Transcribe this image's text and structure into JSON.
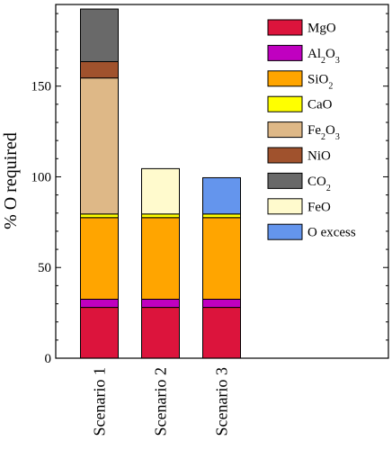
{
  "chart_data": {
    "type": "bar",
    "stacked": true,
    "ylabel": "% O required",
    "xlabel": "",
    "ylim": [
      0,
      195
    ],
    "yticks": [
      0,
      50,
      100,
      150
    ],
    "categories": [
      "Scenario 1",
      "Scenario 2",
      "Scenario 3"
    ],
    "legend_position": "top-right",
    "series": [
      {
        "name": "MgO",
        "label_base": "MgO",
        "label_sub": "",
        "label_tail": "",
        "color": "#dc143c",
        "values": [
          28,
          28,
          28
        ]
      },
      {
        "name": "Al2O3",
        "label_base": "Al",
        "label_sub": "2",
        "label_tail": "O",
        "label_sub2": "3",
        "color": "#c000c0",
        "values": [
          4.5,
          4.5,
          4.5
        ]
      },
      {
        "name": "SiO2",
        "label_base": "SiO",
        "label_sub": "2",
        "label_tail": "",
        "color": "#ffa500",
        "values": [
          45,
          45,
          45
        ]
      },
      {
        "name": "CaO",
        "label_base": "CaO",
        "label_sub": "",
        "label_tail": "",
        "color": "#ffff00",
        "values": [
          2,
          2,
          2
        ]
      },
      {
        "name": "Fe2O3",
        "label_base": "Fe",
        "label_sub": "2",
        "label_tail": "O",
        "label_sub2": "3",
        "color": "#deb887",
        "values": [
          75,
          0,
          0
        ]
      },
      {
        "name": "NiO",
        "label_base": "NiO",
        "label_sub": "",
        "label_tail": "",
        "color": "#a0522d",
        "values": [
          9,
          0,
          0
        ]
      },
      {
        "name": "CO2",
        "label_base": "CO",
        "label_sub": "2",
        "label_tail": "",
        "color": "#696969",
        "values": [
          29,
          0,
          0
        ]
      },
      {
        "name": "FeO",
        "label_base": "FeO",
        "label_sub": "",
        "label_tail": "",
        "color": "#fffacd",
        "values": [
          0,
          25,
          0
        ]
      },
      {
        "name": "O excess",
        "label_base": "O excess",
        "label_sub": "",
        "label_tail": "",
        "color": "#6495ed",
        "values": [
          0,
          0,
          20
        ]
      }
    ]
  }
}
